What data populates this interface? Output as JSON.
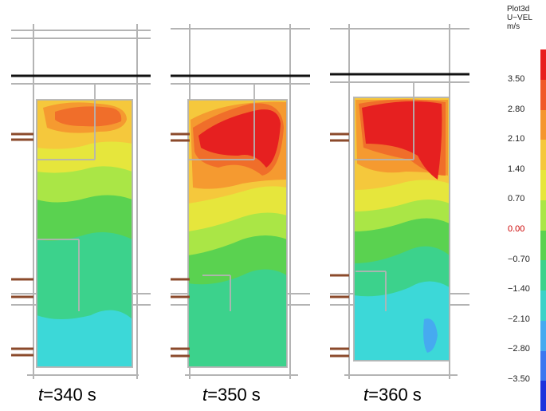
{
  "panels": [
    {
      "caption_t": "t",
      "caption_rest": "=340 s"
    },
    {
      "caption_t": "t",
      "caption_rest": "=350 s"
    },
    {
      "caption_t": "t",
      "caption_rest": "=360 s"
    }
  ],
  "legend": {
    "lines": [
      "Plot3d",
      "U−VEL",
      "m/s"
    ],
    "ticks": [
      "3.50",
      "2.80",
      "2.10",
      "1.40",
      "0.70",
      "0.00",
      "−0.70",
      "−1.40",
      "−2.10",
      "−2.80",
      "−3.50"
    ],
    "colors": [
      "#e81e1e",
      "#f05a28",
      "#f5962d",
      "#f5c83c",
      "#e6e63c",
      "#aae646",
      "#5ad250",
      "#3cd28c",
      "#3cd2c8",
      "#46aaf0",
      "#3c78f0",
      "#1e32dc"
    ],
    "zero_color": "#cc0000"
  }
}
